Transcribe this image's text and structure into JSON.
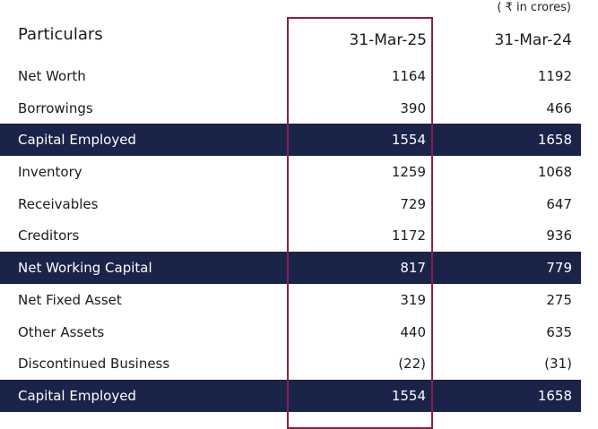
{
  "unit_note": "( ₹ in crores)",
  "header": {
    "label": "Particulars",
    "col1": "31-Mar-25",
    "col2": "31-Mar-24"
  },
  "rows": [
    {
      "label": "Net Worth",
      "v1": "1164",
      "v2": "1192",
      "total": false
    },
    {
      "label": "Borrowings",
      "v1": "390",
      "v2": "466",
      "total": false
    },
    {
      "label": "Capital Employed",
      "v1": "1554",
      "v2": "1658",
      "total": true
    },
    {
      "label": "Inventory",
      "v1": "1259",
      "v2": "1068",
      "total": false
    },
    {
      "label": "Receivables",
      "v1": "729",
      "v2": "647",
      "total": false
    },
    {
      "label": "Creditors",
      "v1": "1172",
      "v2": "936",
      "total": false
    },
    {
      "label": "Net Working Capital",
      "v1": "817",
      "v2": "779",
      "total": true
    },
    {
      "label": "Net Fixed Asset",
      "v1": "319",
      "v2": "275",
      "total": false
    },
    {
      "label": "Other Assets",
      "v1": "440",
      "v2": "635",
      "total": false
    },
    {
      "label": "Discontinued Business",
      "v1": "(22)",
      "v2": "(31)",
      "total": false
    },
    {
      "label": "Capital Employed",
      "v1": "1554",
      "v2": "1658",
      "total": true
    }
  ],
  "colors": {
    "total_row_bg": "#1a2348",
    "highlight_border": "#8b1f4a"
  }
}
